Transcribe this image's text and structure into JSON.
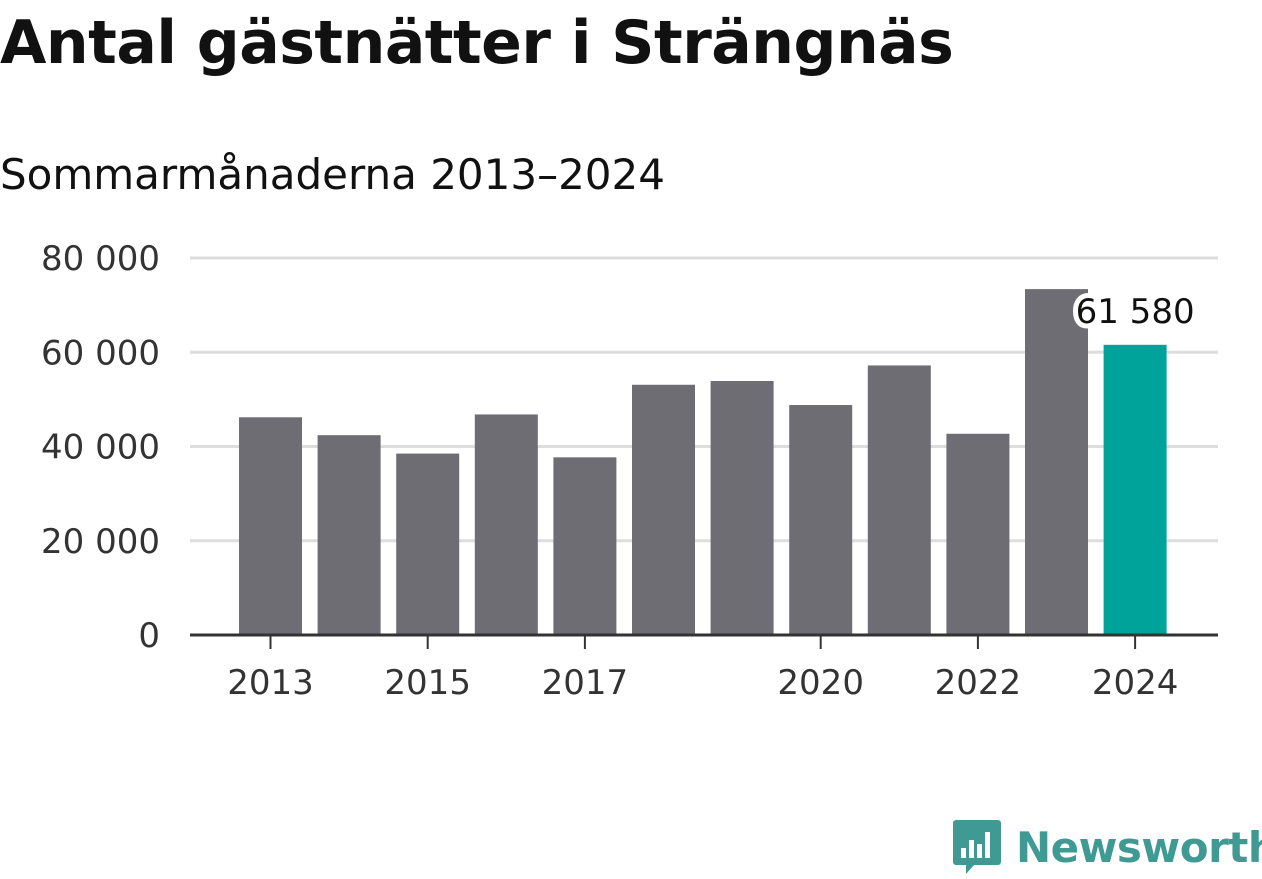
{
  "title": "Antal gästnätter i Strängnäs",
  "subtitle": "Sommarmånaderna 2013–2024",
  "brand": {
    "name": "Newsworthy",
    "color": "#3f9a93",
    "icon": "newsworthy-logo-icon"
  },
  "colors": {
    "bar": "#6e6d74",
    "highlight": "#00a39a",
    "grid": "#dddddd",
    "axis": "#333333"
  },
  "chart_data": {
    "type": "bar",
    "categories": [
      "2013",
      "2014",
      "2015",
      "2016",
      "2017",
      "2018",
      "2019",
      "2020",
      "2021",
      "2022",
      "2023",
      "2024"
    ],
    "values": [
      46200,
      42400,
      38500,
      46800,
      37700,
      53100,
      53900,
      48800,
      57200,
      42700,
      73400,
      61580
    ],
    "highlight_index": 11,
    "ylim": [
      0,
      80000
    ],
    "yticks": [
      0,
      20000,
      40000,
      60000,
      80000
    ],
    "ytick_labels": [
      "0",
      "20 000",
      "40 000",
      "60 000",
      "80 000"
    ],
    "xticks": [
      "2013",
      "2015",
      "2017",
      "2020",
      "2022",
      "2024"
    ],
    "data_labels": [
      {
        "category": "2024",
        "text": "61 580"
      }
    ],
    "grid": true,
    "legend": "none"
  }
}
